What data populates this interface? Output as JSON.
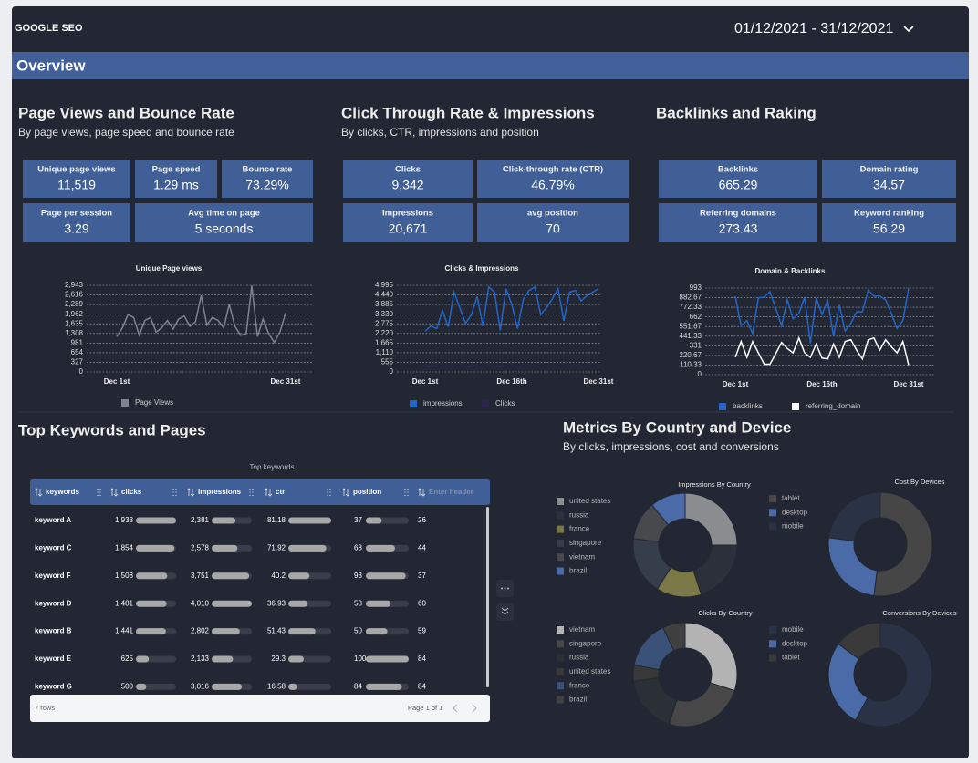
{
  "header": {
    "title": "GOOGLE SEO",
    "date_range": "01/12/2021 - 31/12/2021"
  },
  "overview": {
    "title": "Overview"
  },
  "sections": [
    {
      "title": "Page Views and Bounce Rate",
      "subtitle": "By page views, page speed and bounce rate",
      "kpis": [
        {
          "label": "Unique page views",
          "value": "11,519"
        },
        {
          "label": "Page speed",
          "value": "1.29 ms"
        },
        {
          "label": "Bounce rate",
          "value": "73.29%"
        },
        {
          "label": "Page per session",
          "value": "3.29"
        },
        {
          "label": "Avg time on page",
          "value": "5 seconds"
        }
      ]
    },
    {
      "title": "Click Through Rate & Impressions",
      "subtitle": "By clicks, CTR, impressions and position",
      "kpis": [
        {
          "label": "Clicks",
          "value": "9,342"
        },
        {
          "label": "Click-through rate (CTR)",
          "value": "46.79%"
        },
        {
          "label": "Impressions",
          "value": "20,671"
        },
        {
          "label": "avg position",
          "value": "70"
        }
      ]
    },
    {
      "title": "Backlinks and Raking",
      "kpis": [
        {
          "label": "Backlinks",
          "value": "665.29"
        },
        {
          "label": "Domain rating",
          "value": "34.57"
        },
        {
          "label": "Referring domains",
          "value": "273.43"
        },
        {
          "label": "Keyword ranking",
          "value": "56.29"
        }
      ]
    },
    {
      "title": "Top Keywords and Pages"
    },
    {
      "title": "Metrics By Country and Device",
      "subtitle": "By clicks, impressions, cost and conversions"
    }
  ],
  "chart_data": [
    {
      "type": "line",
      "title": "Unique Page views",
      "grid": true,
      "legend": "bottom",
      "categories": [
        "Dec 1st",
        null,
        null,
        null,
        null,
        null,
        null,
        null,
        null,
        null,
        null,
        null,
        null,
        null,
        null,
        null,
        null,
        null,
        null,
        null,
        null,
        null,
        null,
        null,
        null,
        null,
        null,
        null,
        null,
        null,
        "Dec 31st"
      ],
      "ylim": [
        0,
        2943
      ],
      "yticks": [
        0,
        327,
        654,
        981,
        {
          "value": 1308,
          "label": "1,308"
        },
        {
          "value": 1635,
          "label": "1,635"
        },
        {
          "value": 1962,
          "label": "1,962"
        },
        {
          "value": 2289,
          "label": "2,289"
        },
        {
          "value": 2616,
          "label": "2,616"
        },
        {
          "value": 2943,
          "label": "2,943"
        }
      ],
      "series": [
        {
          "name": "Page Views",
          "color": "#80838d",
          "values": [
            1200,
            1500,
            1950,
            1850,
            1250,
            1750,
            1850,
            1350,
            1500,
            1750,
            1450,
            1800,
            1900,
            1550,
            1700,
            2600,
            1600,
            1850,
            1750,
            1500,
            2300,
            1550,
            1250,
            1300,
            2930,
            1200,
            1800,
            1300,
            1000,
            1350,
            2000
          ]
        }
      ]
    },
    {
      "type": "line",
      "title": "Clicks & Impressions",
      "grid": true,
      "legend": "bottom",
      "categories": [
        "Dec 1st",
        null,
        null,
        null,
        null,
        null,
        null,
        null,
        null,
        null,
        null,
        null,
        null,
        null,
        null,
        "Dec 16th",
        null,
        null,
        null,
        null,
        null,
        null,
        null,
        null,
        null,
        null,
        null,
        null,
        null,
        null,
        "Dec 31st"
      ],
      "ylim": [
        0,
        4995
      ],
      "yticks": [
        0,
        555,
        {
          "value": 1110,
          "label": "1,110"
        },
        {
          "value": 1665,
          "label": "1,665"
        },
        {
          "value": 2220,
          "label": "2,220"
        },
        {
          "value": 2775,
          "label": "2,775"
        },
        {
          "value": 3330,
          "label": "3,330"
        },
        {
          "value": 3885,
          "label": "3,885"
        },
        {
          "value": 4440,
          "label": "4,440"
        },
        {
          "value": 4995,
          "label": "4,995"
        }
      ],
      "series": [
        {
          "name": "impressions",
          "color": "#2166c8",
          "values": [
            2350,
            2650,
            2500,
            3550,
            2600,
            4600,
            3700,
            2800,
            3300,
            4350,
            2650,
            4900,
            4600,
            2400,
            4800,
            3900,
            2500,
            4200,
            4700,
            4900,
            3300,
            3700,
            4200,
            4800,
            2950,
            4600,
            4700,
            4100,
            4400,
            4600,
            4800
          ]
        },
        {
          "name": "Clicks",
          "color": "#2b2350",
          "values": [
            280,
            310,
            290,
            330,
            300,
            350,
            320,
            290,
            300,
            340,
            280,
            360,
            350,
            270,
            360,
            320,
            280,
            340,
            350,
            360,
            300,
            320,
            330,
            350,
            290,
            340,
            350,
            320,
            330,
            340,
            360
          ]
        }
      ]
    },
    {
      "type": "line",
      "title": "Domain & Backlinks",
      "grid": true,
      "legend": "bottom",
      "categories": [
        "Dec 1st",
        null,
        null,
        null,
        null,
        null,
        null,
        null,
        null,
        null,
        null,
        null,
        null,
        null,
        null,
        "Dec 16th",
        null,
        null,
        null,
        null,
        null,
        null,
        null,
        null,
        null,
        null,
        null,
        null,
        null,
        null,
        "Dec 31st"
      ],
      "ylim": [
        0,
        993
      ],
      "yticks": [
        0,
        110.33,
        220.67,
        331,
        441.33,
        551.67,
        662,
        772.33,
        882.67,
        993
      ],
      "series": [
        {
          "name": "backlinks",
          "color": "#2166c8",
          "values": [
            900,
            560,
            620,
            470,
            880,
            890,
            950,
            760,
            560,
            860,
            640,
            700,
            890,
            360,
            880,
            690,
            850,
            440,
            800,
            500,
            590,
            720,
            720,
            970,
            900,
            900,
            860,
            700,
            530,
            620,
            990
          ]
        },
        {
          "name": "referring_domain",
          "color": "#ffffff",
          "values": [
            200,
            380,
            200,
            380,
            250,
            120,
            120,
            240,
            370,
            300,
            250,
            420,
            250,
            200,
            350,
            190,
            180,
            350,
            200,
            380,
            400,
            280,
            180,
            400,
            420,
            280,
            400,
            320,
            250,
            380,
            110
          ]
        }
      ]
    },
    {
      "type": "donut",
      "title": "Impressions By Country",
      "legend": "left",
      "categories": [
        "united states",
        "russia",
        "france",
        "singapore",
        "vietnam",
        "brazil"
      ],
      "values": [
        25,
        20,
        14,
        18,
        12,
        11
      ],
      "colors": [
        "#8c8d90",
        "#2c303a",
        "#7a7847",
        "#363d4b",
        "#48494c",
        "#4a6aa8"
      ]
    },
    {
      "type": "donut",
      "title": "Cost By Devices",
      "legend": "left",
      "categories": [
        "tablet",
        "desktop",
        "mobile"
      ],
      "values": [
        52,
        25,
        23
      ],
      "colors": [
        "#464646",
        "#4a6aa8",
        "#2a3345"
      ]
    },
    {
      "type": "donut",
      "title": "Clicks By Country",
      "legend": "left",
      "categories": [
        "vietnam",
        "singapore",
        "russia",
        "united states",
        "france",
        "brazil"
      ],
      "values": [
        30,
        25,
        18,
        5,
        15,
        7
      ],
      "colors": [
        "#b3b3b3",
        "#474747",
        "#2b2f36",
        "#383838",
        "#3b5278",
        "#404040"
      ]
    },
    {
      "type": "donut",
      "title": "Conversions By Devices",
      "legend": "left",
      "categories": [
        "mobile",
        "desktop",
        "tablet"
      ],
      "values": [
        58,
        27,
        15
      ],
      "colors": [
        "#2a3345",
        "#4a6aa8",
        "#3a3a3a"
      ]
    }
  ],
  "table": {
    "title": "Top keywords",
    "columns": [
      "keywords",
      "clicks",
      "impressions",
      "ctr",
      "position",
      "Enter header"
    ],
    "keywords": [
      "keyword A",
      "keyword C",
      "keyword F",
      "keyword D",
      "keyword B",
      "keyword E",
      "keyword G"
    ],
    "clicks": {
      "values": [
        1933,
        1854,
        1508,
        1481,
        1441,
        625,
        500
      ],
      "value_labels": [
        "1,933",
        "1,854",
        "1,508",
        "1,481",
        "1,441",
        "625",
        "500"
      ]
    },
    "impressions": {
      "values": [
        2381,
        2578,
        3751,
        4010,
        2802,
        2133,
        3016
      ],
      "value_labels": [
        "2,381",
        "2,578",
        "3,751",
        "4,010",
        "2,802",
        "2,133",
        "3,016"
      ]
    },
    "ctr": {
      "values": [
        81.18,
        71.92,
        40.2,
        36.93,
        51.43,
        29.3,
        16.58
      ]
    },
    "position": {
      "values": [
        37,
        68,
        93,
        58,
        50,
        100,
        84
      ]
    },
    "enter_header": {
      "values": [
        26,
        44,
        37,
        60,
        59,
        84,
        84
      ]
    },
    "row_count": "7 rows",
    "pagination": "Page 1 of 1"
  }
}
